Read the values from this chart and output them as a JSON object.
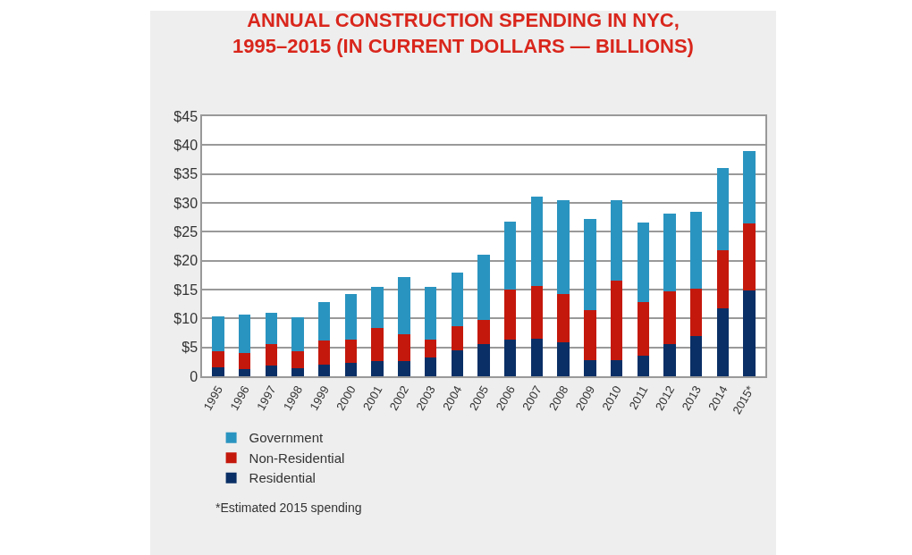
{
  "chart_data": {
    "type": "bar",
    "title": "ANNUAL CONSTRUCTION SPENDING IN NYC,\n1995–2015 (IN CURRENT DOLLARS — BILLIONS)",
    "categories": [
      "1995",
      "1996",
      "1997",
      "1998",
      "1999",
      "2000",
      "2001",
      "2002",
      "2003",
      "2004",
      "2005",
      "2006",
      "2007",
      "2008",
      "2009",
      "2010",
      "2011",
      "2012",
      "2013",
      "2014",
      "2015*"
    ],
    "stacked": true,
    "series": [
      {
        "name": "Residential",
        "color": "#0a2f66",
        "values": [
          1.5,
          1.2,
          1.8,
          1.4,
          2.0,
          2.3,
          2.6,
          2.6,
          3.3,
          4.5,
          5.5,
          6.3,
          6.5,
          5.9,
          2.8,
          2.8,
          3.5,
          5.5,
          7.0,
          11.8,
          14.9
        ]
      },
      {
        "name": "Non-Residential",
        "color": "#c4180c",
        "values": [
          2.8,
          2.8,
          3.7,
          2.9,
          4.2,
          4.1,
          5.7,
          4.7,
          3.0,
          4.2,
          4.2,
          8.7,
          9.1,
          8.4,
          8.7,
          13.7,
          9.3,
          9.2,
          8.2,
          10.0,
          11.6
        ]
      },
      {
        "name": "Government",
        "color": "#2a94c0",
        "values": [
          6.0,
          6.6,
          5.5,
          5.9,
          6.6,
          7.8,
          7.1,
          9.8,
          9.1,
          9.3,
          11.4,
          11.8,
          15.5,
          16.2,
          15.7,
          14.0,
          13.8,
          13.4,
          13.3,
          14.3,
          12.5
        ]
      }
    ],
    "ylim": [
      0,
      45
    ],
    "yticks": [
      {
        "value": 0,
        "label": "0"
      },
      {
        "value": 5,
        "label": "$5"
      },
      {
        "value": 10,
        "label": "$10"
      },
      {
        "value": 15,
        "label": "$15"
      },
      {
        "value": 20,
        "label": "$20"
      },
      {
        "value": 25,
        "label": "$25"
      },
      {
        "value": 30,
        "label": "$30"
      },
      {
        "value": 35,
        "label": "$35"
      },
      {
        "value": 40,
        "label": "$40"
      },
      {
        "value": 45,
        "label": "$45"
      }
    ],
    "grid": "y",
    "legend": "bottom",
    "annotations": [
      "*Estimated 2015 spending"
    ]
  }
}
